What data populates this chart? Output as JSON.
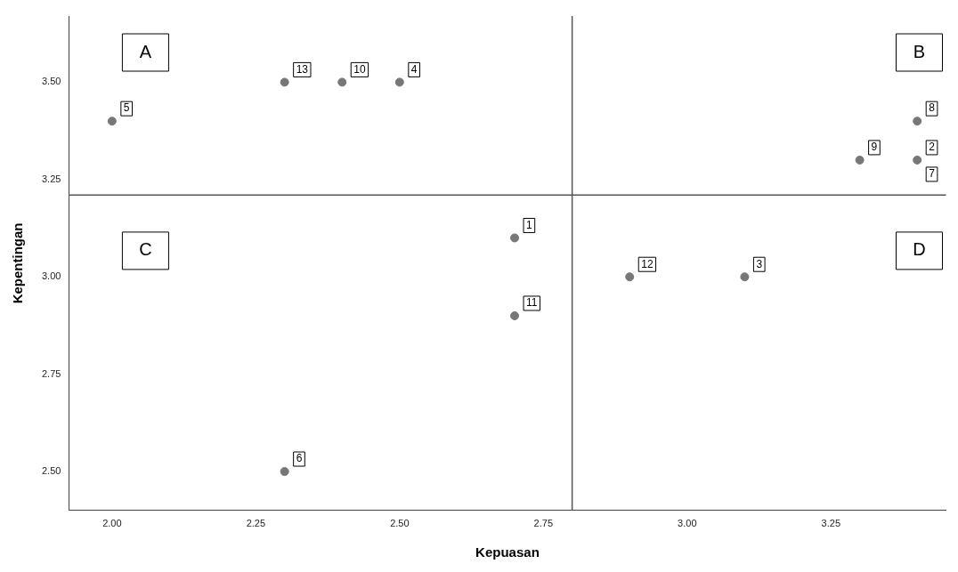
{
  "chart_data": {
    "type": "scatter",
    "xlabel": "Kepuasan",
    "ylabel": "Kepentingan",
    "x": [
      2.7,
      3.4,
      3.1,
      2.5,
      2.0,
      2.3,
      3.4,
      3.3,
      2.4,
      2.7,
      2.9,
      2.3
    ],
    "series": [
      {
        "color": "#777777",
        "values": [
          3.1,
          3.3,
          3.0,
          3.5,
          3.4,
          2.5,
          3.4,
          3.3,
          3.5,
          2.9,
          3.0,
          3.5
        ]
      }
    ],
    "xlim": [
      1.925,
      3.45
    ],
    "ylim": [
      2.4,
      3.67
    ],
    "xticks": [
      {
        "value": 2,
        "label": "2.00"
      },
      {
        "value": 2.25,
        "label": "2.25"
      },
      {
        "value": 2.5,
        "label": "2.50"
      },
      {
        "value": 2.75,
        "label": "2.75"
      },
      {
        "value": 3,
        "label": "3.00"
      },
      {
        "value": 3.25,
        "label": "3.25"
      }
    ],
    "yticks": [
      {
        "value": 2.5,
        "label": "2.50"
      },
      {
        "value": 2.75,
        "label": "2.75"
      },
      {
        "value": 3,
        "label": "3.00"
      },
      {
        "value": 3.25,
        "label": "3.25"
      },
      {
        "value": 3.5,
        "label": "3.50"
      }
    ],
    "ref_lines": [
      {
        "axis": "x",
        "value": 2.8,
        "color": "#555555"
      },
      {
        "axis": "y",
        "value": 3.21,
        "color": "#555555"
      }
    ],
    "annotations": [
      "A",
      "B",
      "C",
      "D",
      {
        "text": "1",
        "x": 2.7,
        "y": 3.1
      },
      {
        "text": "2",
        "x": 3.4,
        "y": 3.3
      },
      {
        "text": "3",
        "x": 3.1,
        "y": 3.0
      },
      {
        "text": "4",
        "x": 2.5,
        "y": 3.5
      },
      {
        "text": "5",
        "x": 2.0,
        "y": 3.4
      },
      {
        "text": "6",
        "x": 2.3,
        "y": 2.5
      },
      {
        "text": "7",
        "x": 3.4,
        "y": 3.3
      },
      {
        "text": "8",
        "x": 3.4,
        "y": 3.4
      },
      {
        "text": "9",
        "x": 3.3,
        "y": 3.3
      },
      {
        "text": "10",
        "x": 2.4,
        "y": 3.5
      },
      {
        "text": "11",
        "x": 2.7,
        "y": 2.9
      },
      {
        "text": "12",
        "x": 2.9,
        "y": 3.0
      },
      {
        "text": "13",
        "x": 2.3,
        "y": 3.5
      }
    ],
    "grid": false,
    "legend": false,
    "marker": "circle"
  }
}
